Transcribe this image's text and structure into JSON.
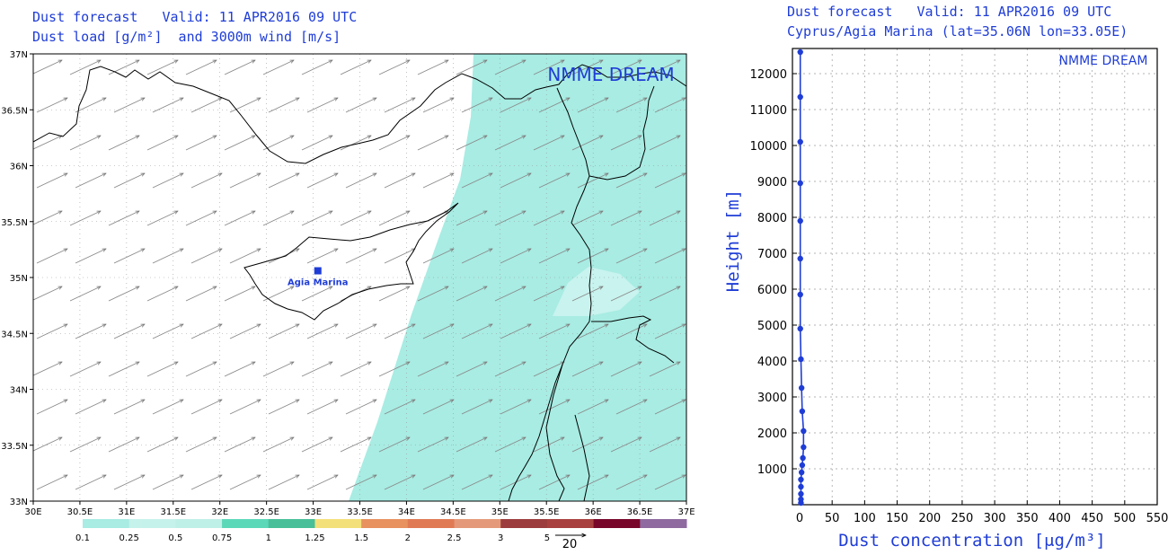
{
  "left_panel": {
    "title_line1": "Dust forecast   Valid: 11 APR2016 09 UTC",
    "title_line2": "Dust load [g/m²]  and 3000m wind [m/s]",
    "watermark": "NMME DREAM",
    "station_label": "Agia Marina",
    "wind_ref_label": "20"
  },
  "right_panel": {
    "title_line1": "Dust forecast   Valid: 11 APR2016 09 UTC",
    "title_line2": "Cyprus/Agia Marina (lat=35.06N lon=33.05E)",
    "watermark": "NMME DREAM"
  },
  "colors": {
    "dust_low": "#a8ece3",
    "dust_patch": "#c8f3ee",
    "profile": "#1f3dd6",
    "colorbar": [
      "#a8ece3",
      "#c6f2ec",
      "#bff0e8",
      "#5bd8b8",
      "#48bf98",
      "#f3e07a",
      "#e8925f",
      "#e07a55",
      "#e49a7a",
      "#9c3c3c",
      "#a94040",
      "#78062a",
      "#8f6aa0"
    ]
  },
  "chart_data": [
    {
      "type": "map",
      "title": "Dust load [g/m²]  and 3000m wind [m/s]",
      "x_ticks": [
        "30E",
        "30.5E",
        "31E",
        "31.5E",
        "32E",
        "32.5E",
        "33E",
        "33.5E",
        "34E",
        "34.5E",
        "35E",
        "35.5E",
        "36E",
        "36.5E",
        "37E"
      ],
      "y_ticks": [
        "33N",
        "33.5N",
        "34N",
        "34.5N",
        "35N",
        "35.5N",
        "36N",
        "36.5N",
        "37N"
      ],
      "xlim": [
        30,
        37
      ],
      "ylim": [
        33,
        37
      ],
      "colorbar_labels": [
        "0.1",
        "0.25",
        "0.5",
        "0.75",
        "1",
        "1.25",
        "1.5",
        "2",
        "2.5",
        "3",
        "5"
      ],
      "station": {
        "name": "Agia Marina",
        "lon": 33.05,
        "lat": 35.06
      }
    },
    {
      "type": "line",
      "xlabel": "Dust concentration [μg/m³]",
      "ylabel": "Height [m]",
      "xlim": [
        0,
        550
      ],
      "ylim": [
        0,
        12700
      ],
      "x_ticks": [
        0,
        50,
        100,
        150,
        200,
        250,
        300,
        350,
        400,
        450,
        500,
        550
      ],
      "y_ticks": [
        1000,
        2000,
        3000,
        4000,
        5000,
        6000,
        7000,
        8000,
        9000,
        10000,
        11000,
        12000
      ],
      "grid": true,
      "series": [
        {
          "x": [
            2,
            2,
            2,
            2,
            2,
            3,
            4,
            5,
            6,
            6,
            4,
            3,
            2,
            1,
            1,
            1,
            1,
            1,
            1,
            1,
            1
          ],
          "y": [
            50,
            150,
            300,
            500,
            700,
            900,
            1100,
            1300,
            1600,
            2050,
            2600,
            3250,
            4050,
            4900,
            5850,
            6850,
            7900,
            8950,
            10100,
            11350,
            12600
          ]
        }
      ]
    }
  ]
}
